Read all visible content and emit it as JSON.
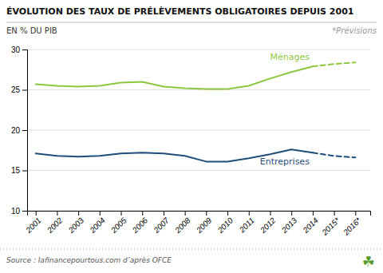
{
  "chart_data": {
    "type": "line",
    "title": "ÉVOLUTION DES TAUX DE PRÉLÈVEMENTS OBLIGATOIRES DEPUIS 2001",
    "ylabel": "EN % DU PIB",
    "forecast_note": "*Prévisions",
    "source": "Source : lafinancepourtous.com d’après OFCE",
    "icon": "☘",
    "x": [
      2001,
      2002,
      2003,
      2004,
      2005,
      2006,
      2007,
      2008,
      2009,
      2010,
      2011,
      2012,
      2013,
      2014,
      2015,
      2016
    ],
    "xlim": [
      2000.6,
      2016.7
    ],
    "xticks": [
      2001,
      2002,
      2003,
      2004,
      2005,
      2006,
      2007,
      2008,
      2009,
      2010,
      2011,
      2012,
      2013,
      2014,
      {
        "value": 2015,
        "label": "2015*"
      },
      {
        "value": 2016,
        "label": "2016*"
      }
    ],
    "ylim": [
      10,
      30
    ],
    "yticks": [
      10,
      15,
      20,
      25,
      30
    ],
    "grid": true,
    "series": [
      {
        "name": "Ménages",
        "color": "#8dc63f",
        "line_style": "solid",
        "values": [
          25.7,
          25.5,
          25.4,
          25.5,
          25.9,
          26.0,
          25.4,
          25.2,
          25.1,
          25.1,
          25.5,
          26.4,
          27.2,
          27.9,
          null,
          null
        ]
      },
      {
        "name": "Entreprises",
        "color": "#1f4e79",
        "line_style": "solid",
        "values": [
          17.1,
          16.8,
          16.7,
          16.8,
          17.1,
          17.2,
          17.1,
          16.8,
          16.1,
          16.1,
          16.5,
          17.0,
          17.6,
          17.2,
          null,
          null
        ]
      },
      {
        "color": "#8dc63f",
        "line_style": "dashed",
        "values": [
          null,
          null,
          null,
          null,
          null,
          null,
          null,
          null,
          null,
          null,
          null,
          null,
          null,
          27.9,
          28.2,
          28.4
        ]
      },
      {
        "color": "#1f4e79",
        "line_style": "dashed",
        "values": [
          null,
          null,
          null,
          null,
          null,
          null,
          null,
          null,
          null,
          null,
          null,
          null,
          null,
          17.2,
          16.8,
          16.6
        ]
      }
    ]
  }
}
